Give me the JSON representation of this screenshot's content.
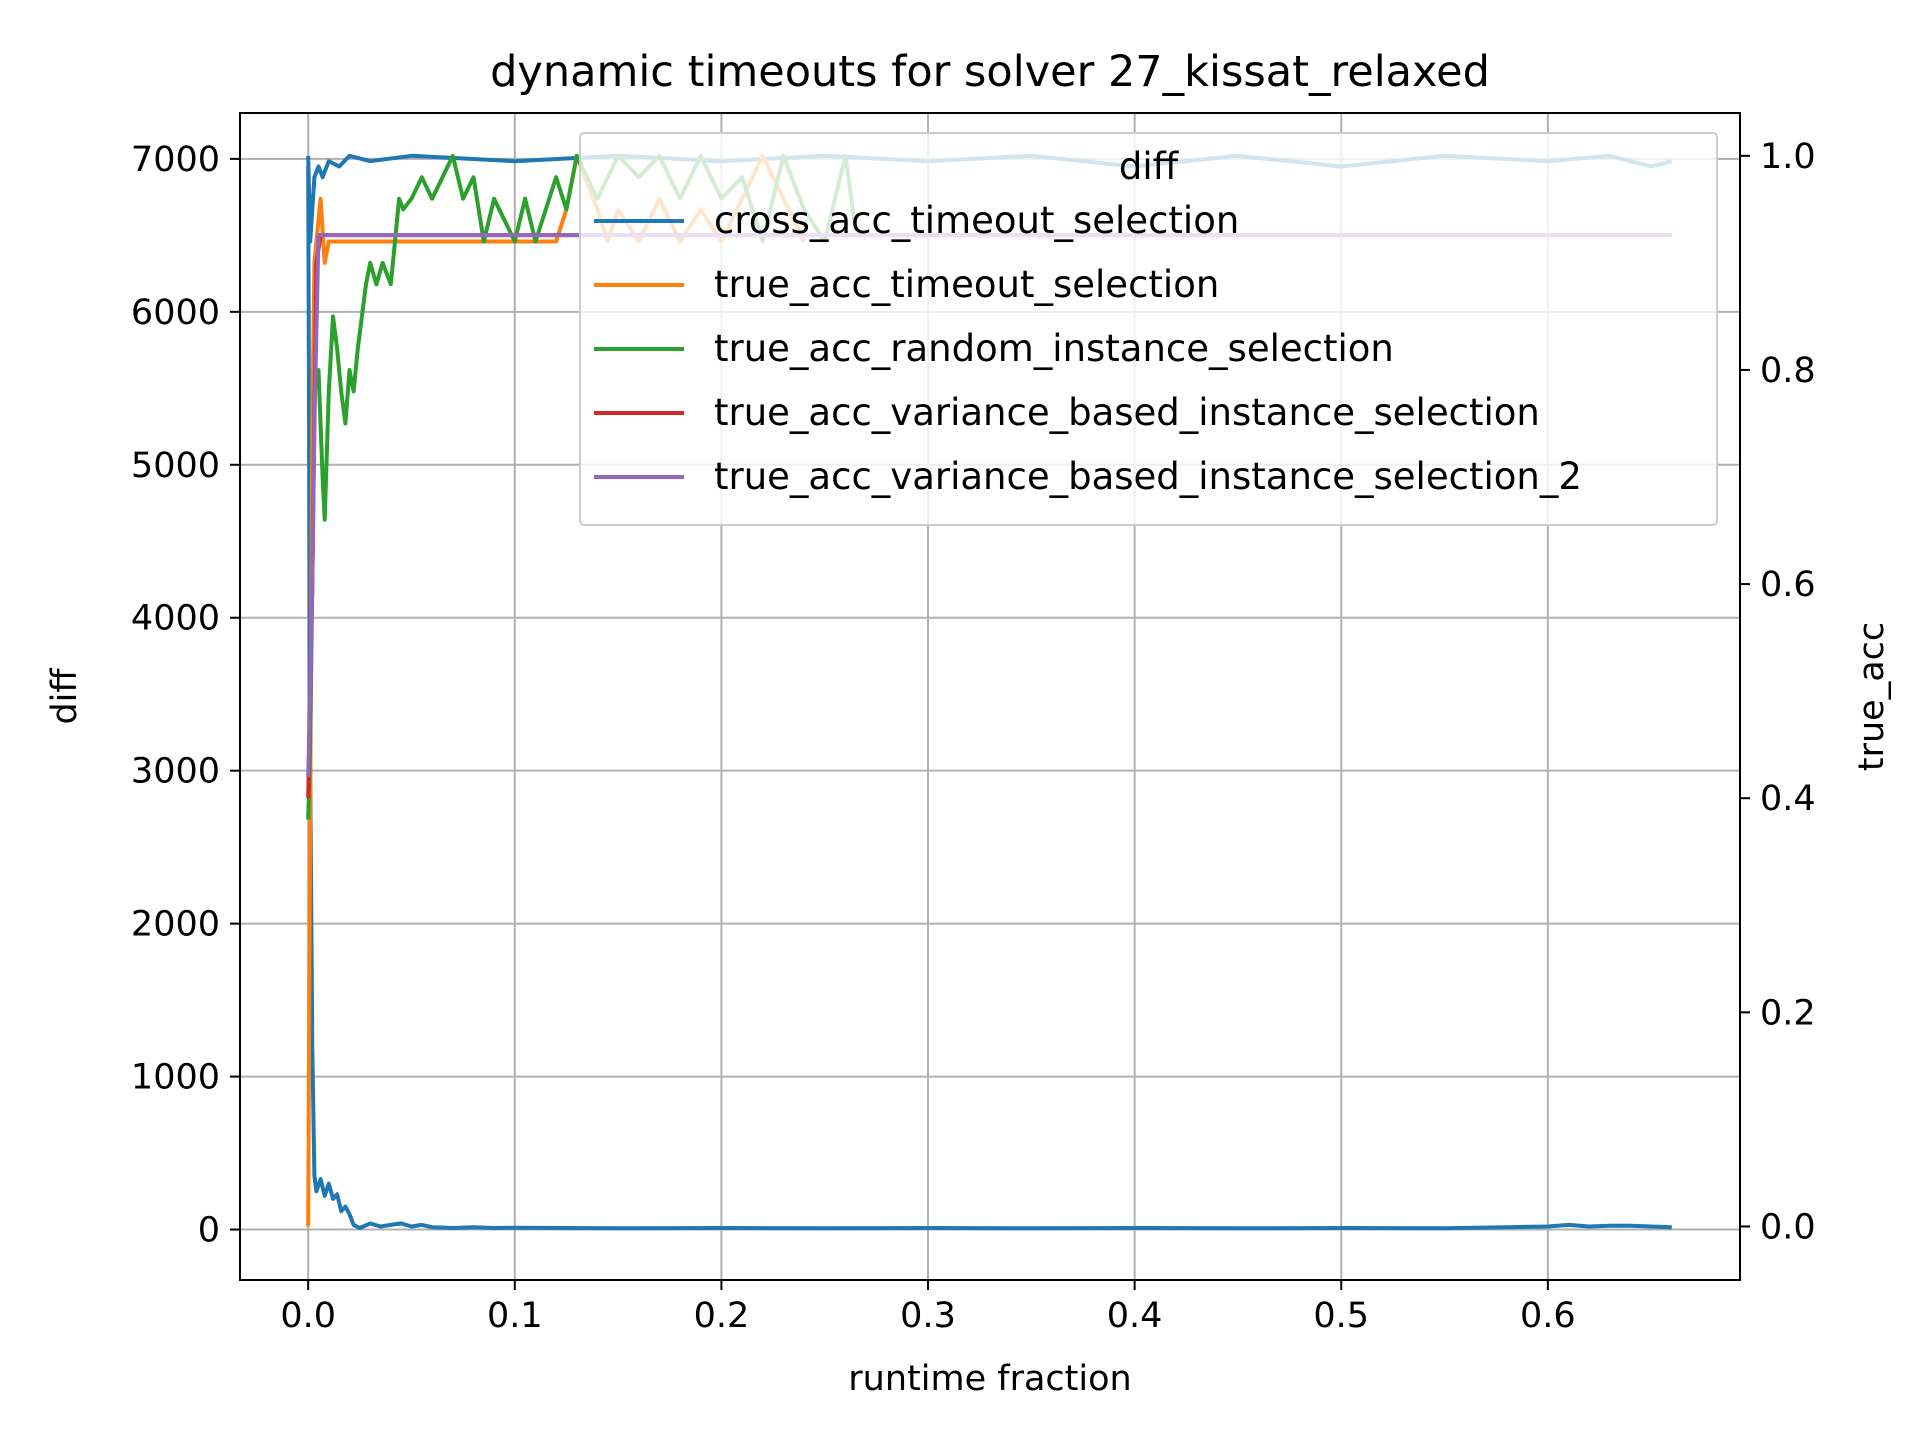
{
  "chart_data": {
    "type": "line",
    "title": "dynamic timeouts for solver 27_kissat_relaxed",
    "xlabel": "runtime fraction",
    "ylabel_left": "diff",
    "ylabel_right": "true_acc",
    "ylabel_left_color": "#008000",
    "ylabel_right_color": "#ff0000",
    "xlim": [
      -0.033,
      0.693
    ],
    "ylim_left": [
      -330,
      7300
    ],
    "ylim_right": [
      -0.05,
      1.04
    ],
    "x_ticks": [
      0.0,
      0.1,
      0.2,
      0.3,
      0.4,
      0.5,
      0.6
    ],
    "x_tick_labels": [
      "0.0",
      "0.1",
      "0.2",
      "0.3",
      "0.4",
      "0.5",
      "0.6"
    ],
    "y_left_ticks": [
      0,
      1000,
      2000,
      3000,
      4000,
      5000,
      6000,
      7000
    ],
    "y_left_tick_labels": [
      "0",
      "1000",
      "2000",
      "3000",
      "4000",
      "5000",
      "6000",
      "7000"
    ],
    "y_right_ticks": [
      0.0,
      0.2,
      0.4,
      0.6,
      0.8,
      1.0
    ],
    "y_right_tick_labels": [
      "0.0",
      "0.2",
      "0.4",
      "0.6",
      "0.8",
      "1.0"
    ],
    "grid": true,
    "legend": {
      "placement": "top-right",
      "title": "diff",
      "entries": [
        {
          "label": "cross_acc_timeout_selection",
          "color": "#1f77b4"
        },
        {
          "label": "true_acc_timeout_selection",
          "color": "#ff7f0e"
        },
        {
          "label": "true_acc_random_instance_selection",
          "color": "#2ca02c"
        },
        {
          "label": "true_acc_variance_based_instance_selection",
          "color": "#d62728"
        },
        {
          "label": "true_acc_variance_based_instance_selection_2",
          "color": "#9467bd"
        }
      ]
    },
    "series": [
      {
        "name": "diff",
        "axis": "left",
        "color": "#1f77b4",
        "x": [
          0.0,
          0.001,
          0.002,
          0.003,
          0.004,
          0.006,
          0.008,
          0.01,
          0.012,
          0.014,
          0.016,
          0.018,
          0.02,
          0.022,
          0.025,
          0.03,
          0.035,
          0.04,
          0.045,
          0.05,
          0.055,
          0.06,
          0.07,
          0.08,
          0.09,
          0.1,
          0.15,
          0.2,
          0.25,
          0.3,
          0.35,
          0.4,
          0.45,
          0.5,
          0.55,
          0.58,
          0.6,
          0.61,
          0.62,
          0.63,
          0.64,
          0.65,
          0.66
        ],
        "y": [
          6950,
          3000,
          1200,
          350,
          250,
          330,
          220,
          300,
          200,
          230,
          120,
          150,
          100,
          30,
          10,
          40,
          20,
          30,
          40,
          20,
          30,
          15,
          10,
          15,
          10,
          12,
          8,
          10,
          8,
          10,
          8,
          10,
          8,
          10,
          8,
          15,
          20,
          30,
          20,
          25,
          25,
          20,
          15
        ]
      },
      {
        "name": "cross_acc_timeout_selection",
        "axis": "right",
        "color": "#1f77b4",
        "x": [
          0.0,
          0.001,
          0.002,
          0.003,
          0.005,
          0.007,
          0.01,
          0.015,
          0.02,
          0.03,
          0.05,
          0.1,
          0.15,
          0.2,
          0.25,
          0.3,
          0.35,
          0.4,
          0.45,
          0.5,
          0.55,
          0.6,
          0.63,
          0.65,
          0.66
        ],
        "y": [
          1.0,
          0.92,
          0.95,
          0.98,
          0.99,
          0.98,
          0.995,
          0.99,
          1.0,
          0.995,
          1.0,
          0.995,
          1.0,
          0.995,
          1.0,
          0.995,
          1.0,
          0.99,
          1.0,
          0.99,
          1.0,
          0.995,
          1.0,
          0.99,
          0.995
        ]
      },
      {
        "name": "true_acc_timeout_selection",
        "axis": "right",
        "color": "#ff7f0e",
        "x": [
          0.0,
          0.001,
          0.002,
          0.003,
          0.004,
          0.006,
          0.008,
          0.01,
          0.014,
          0.016,
          0.12,
          0.125,
          0.13,
          0.14,
          0.145,
          0.15,
          0.16,
          0.17,
          0.18,
          0.19,
          0.2,
          0.21,
          0.22,
          0.23,
          0.24
        ],
        "y": [
          0.0,
          0.4,
          0.75,
          0.9,
          0.92,
          0.96,
          0.9,
          0.92,
          0.92,
          0.92,
          0.92,
          0.95,
          1.0,
          0.95,
          0.92,
          0.95,
          0.92,
          0.96,
          0.92,
          0.95,
          0.92,
          0.96,
          1.0,
          0.96,
          0.92
        ]
      },
      {
        "name": "true_acc_random_instance_selection",
        "axis": "right",
        "color": "#2ca02c",
        "x": [
          0.0,
          0.001,
          0.002,
          0.003,
          0.005,
          0.007,
          0.008,
          0.01,
          0.012,
          0.014,
          0.016,
          0.018,
          0.02,
          0.022,
          0.024,
          0.026,
          0.028,
          0.03,
          0.033,
          0.036,
          0.04,
          0.042,
          0.044,
          0.046,
          0.05,
          0.055,
          0.06,
          0.065,
          0.07,
          0.075,
          0.08,
          0.085,
          0.09,
          0.1,
          0.105,
          0.11,
          0.12,
          0.125,
          0.13,
          0.14,
          0.15,
          0.16,
          0.17,
          0.18,
          0.19,
          0.2,
          0.21,
          0.22,
          0.23,
          0.24,
          0.25,
          0.26,
          0.265
        ],
        "y": [
          0.38,
          0.45,
          0.6,
          0.78,
          0.8,
          0.7,
          0.66,
          0.78,
          0.85,
          0.82,
          0.78,
          0.75,
          0.8,
          0.78,
          0.82,
          0.85,
          0.88,
          0.9,
          0.88,
          0.9,
          0.88,
          0.92,
          0.96,
          0.95,
          0.96,
          0.98,
          0.96,
          0.98,
          1.0,
          0.96,
          0.98,
          0.92,
          0.96,
          0.92,
          0.96,
          0.92,
          0.98,
          0.95,
          1.0,
          0.96,
          1.0,
          0.98,
          1.0,
          0.96,
          1.0,
          0.96,
          0.98,
          0.92,
          1.0,
          0.95,
          0.92,
          1.0,
          0.93
        ]
      },
      {
        "name": "true_acc_variance_based_instance_selection",
        "axis": "right",
        "color": "#d62728",
        "x": [
          0.0,
          0.002,
          0.004,
          0.006,
          0.66
        ],
        "y": [
          0.4,
          0.6,
          0.9,
          0.926,
          0.926
        ]
      },
      {
        "name": "true_acc_variance_based_instance_selection_2",
        "axis": "right",
        "color": "#9467bd",
        "x": [
          0.0,
          0.001,
          0.002,
          0.003,
          0.005,
          0.66
        ],
        "y": [
          0.42,
          0.5,
          0.6,
          0.75,
          0.926,
          0.926
        ]
      }
    ]
  }
}
